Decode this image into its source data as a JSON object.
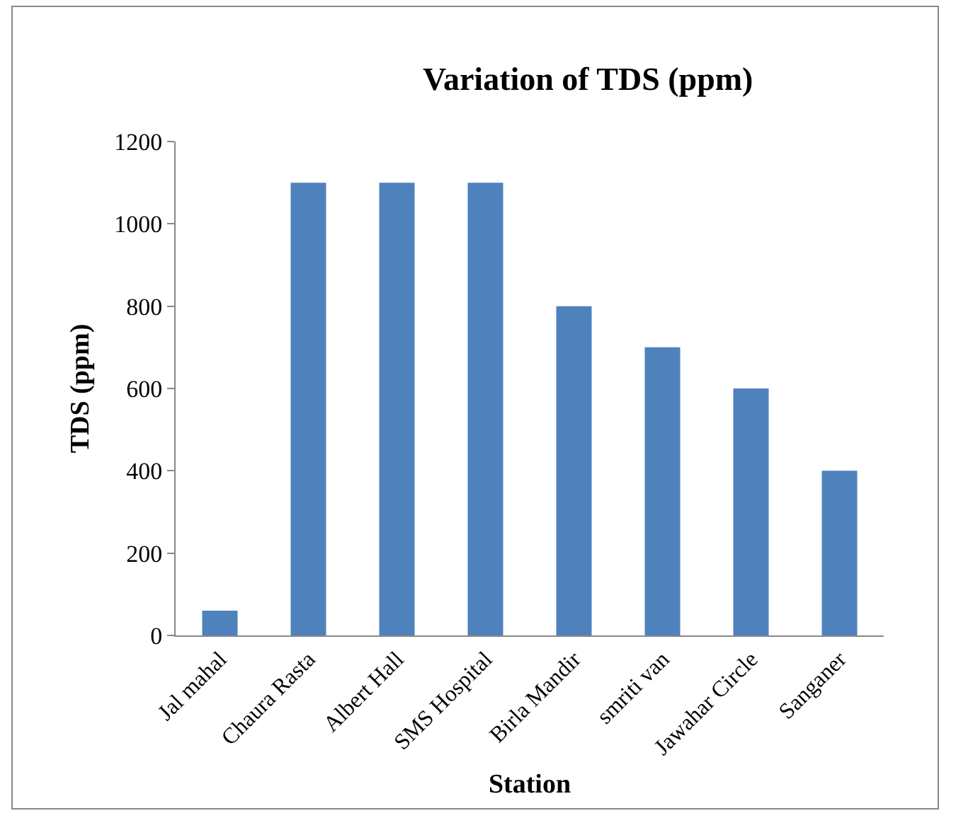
{
  "chart_data": {
    "type": "bar",
    "title": "Variation of TDS (ppm)",
    "xlabel": "Station",
    "ylabel": "TDS (ppm)",
    "categories": [
      "Jal mahal",
      "Chaura Rasta",
      "Albert Hall",
      "SMS Hospital",
      "Birla Mandir",
      "smriti van",
      "Jawahar Circle",
      "Sanganer"
    ],
    "values": [
      60,
      1100,
      1100,
      1100,
      800,
      700,
      600,
      400
    ],
    "color": "#4f81bd",
    "ylim": [
      0,
      1200
    ],
    "yticks": [
      0,
      200,
      400,
      600,
      800,
      1000,
      1200
    ],
    "grid": false
  }
}
